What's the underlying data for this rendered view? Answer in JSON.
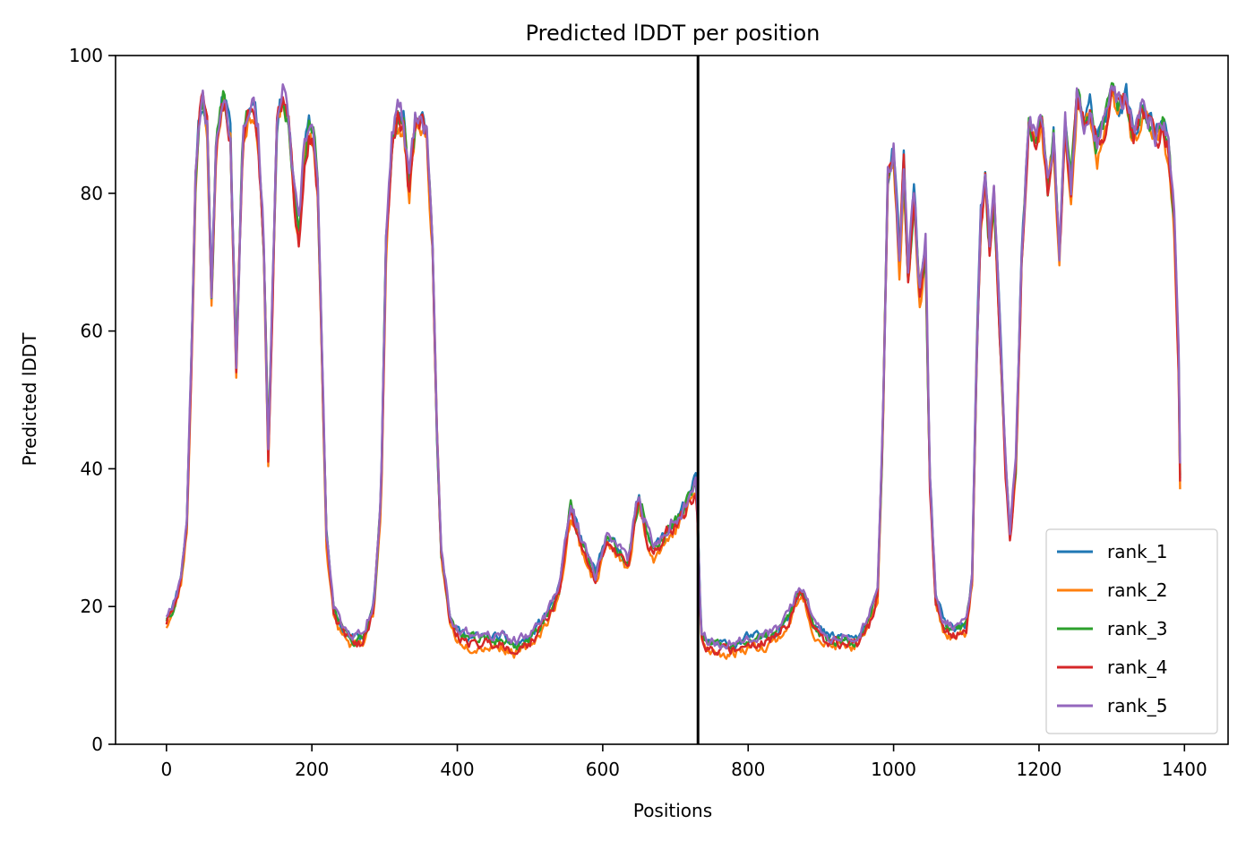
{
  "chart_data": {
    "type": "line",
    "title": "Predicted lDDT per position",
    "xlabel": "Positions",
    "ylabel": "Predicted lDDT",
    "xlim": [
      -70,
      1460
    ],
    "ylim": [
      0,
      100
    ],
    "xticks": [
      0,
      200,
      400,
      600,
      800,
      1000,
      1200,
      1400
    ],
    "yticks": [
      0,
      20,
      40,
      60,
      80,
      100
    ],
    "vline_x": 731,
    "vline_color": "#000000",
    "legend_location": "lower-right",
    "x_max": 1394,
    "profile": [
      [
        0,
        18
      ],
      [
        10,
        20
      ],
      [
        20,
        24
      ],
      [
        28,
        32
      ],
      [
        35,
        58
      ],
      [
        40,
        82
      ],
      [
        45,
        91
      ],
      [
        50,
        93
      ],
      [
        56,
        90
      ],
      [
        62,
        64
      ],
      [
        68,
        86
      ],
      [
        75,
        93
      ],
      [
        80,
        94
      ],
      [
        88,
        88
      ],
      [
        96,
        55
      ],
      [
        105,
        88
      ],
      [
        112,
        92
      ],
      [
        120,
        93
      ],
      [
        126,
        89
      ],
      [
        134,
        72
      ],
      [
        140,
        42
      ],
      [
        146,
        65
      ],
      [
        152,
        90
      ],
      [
        160,
        94
      ],
      [
        168,
        90
      ],
      [
        175,
        80
      ],
      [
        182,
        74
      ],
      [
        190,
        86
      ],
      [
        196,
        89
      ],
      [
        203,
        88
      ],
      [
        208,
        80
      ],
      [
        213,
        60
      ],
      [
        220,
        30
      ],
      [
        230,
        19
      ],
      [
        240,
        17
      ],
      [
        255,
        15
      ],
      [
        270,
        15
      ],
      [
        285,
        20
      ],
      [
        295,
        35
      ],
      [
        302,
        72
      ],
      [
        310,
        87
      ],
      [
        318,
        91
      ],
      [
        326,
        90
      ],
      [
        334,
        80
      ],
      [
        342,
        90
      ],
      [
        350,
        91
      ],
      [
        358,
        88
      ],
      [
        366,
        72
      ],
      [
        372,
        45
      ],
      [
        378,
        28
      ],
      [
        390,
        18
      ],
      [
        400,
        16
      ],
      [
        420,
        15
      ],
      [
        440,
        15
      ],
      [
        460,
        15
      ],
      [
        480,
        14
      ],
      [
        500,
        15
      ],
      [
        520,
        18
      ],
      [
        540,
        22
      ],
      [
        548,
        28
      ],
      [
        556,
        34
      ],
      [
        565,
        31
      ],
      [
        575,
        28
      ],
      [
        590,
        24
      ],
      [
        605,
        30
      ],
      [
        620,
        28
      ],
      [
        635,
        26
      ],
      [
        650,
        36
      ],
      [
        660,
        31
      ],
      [
        670,
        28
      ],
      [
        685,
        30
      ],
      [
        700,
        32
      ],
      [
        712,
        34
      ],
      [
        722,
        36
      ],
      [
        729,
        38
      ],
      [
        735,
        16
      ],
      [
        745,
        14
      ],
      [
        760,
        14
      ],
      [
        780,
        14
      ],
      [
        800,
        15
      ],
      [
        820,
        15
      ],
      [
        840,
        16
      ],
      [
        855,
        18
      ],
      [
        866,
        21
      ],
      [
        875,
        22
      ],
      [
        890,
        17
      ],
      [
        910,
        15
      ],
      [
        930,
        15
      ],
      [
        950,
        15
      ],
      [
        965,
        17
      ],
      [
        978,
        22
      ],
      [
        985,
        45
      ],
      [
        992,
        82
      ],
      [
        1000,
        86
      ],
      [
        1008,
        70
      ],
      [
        1014,
        84
      ],
      [
        1020,
        68
      ],
      [
        1028,
        80
      ],
      [
        1036,
        65
      ],
      [
        1044,
        72
      ],
      [
        1050,
        38
      ],
      [
        1058,
        21
      ],
      [
        1070,
        17
      ],
      [
        1085,
        16
      ],
      [
        1100,
        17
      ],
      [
        1108,
        24
      ],
      [
        1114,
        55
      ],
      [
        1120,
        76
      ],
      [
        1126,
        82
      ],
      [
        1132,
        72
      ],
      [
        1138,
        80
      ],
      [
        1146,
        60
      ],
      [
        1154,
        40
      ],
      [
        1160,
        30
      ],
      [
        1168,
        40
      ],
      [
        1176,
        70
      ],
      [
        1186,
        90
      ],
      [
        1194,
        88
      ],
      [
        1204,
        90
      ],
      [
        1212,
        80
      ],
      [
        1220,
        88
      ],
      [
        1228,
        70
      ],
      [
        1236,
        90
      ],
      [
        1244,
        80
      ],
      [
        1252,
        94
      ],
      [
        1262,
        90
      ],
      [
        1270,
        92
      ],
      [
        1280,
        86
      ],
      [
        1290,
        90
      ],
      [
        1300,
        94
      ],
      [
        1310,
        92
      ],
      [
        1320,
        94
      ],
      [
        1330,
        88
      ],
      [
        1340,
        92
      ],
      [
        1350,
        90
      ],
      [
        1360,
        88
      ],
      [
        1370,
        90
      ],
      [
        1378,
        86
      ],
      [
        1386,
        75
      ],
      [
        1392,
        55
      ],
      [
        1394,
        38
      ]
    ],
    "series": [
      {
        "name": "rank_1",
        "color": "#1f77b4",
        "offset": 0.5,
        "seed": 11
      },
      {
        "name": "rank_2",
        "color": "#ff7f0e",
        "offset": -0.8,
        "seed": 23
      },
      {
        "name": "rank_3",
        "color": "#2ca02c",
        "offset": 0.2,
        "seed": 37
      },
      {
        "name": "rank_4",
        "color": "#d62728",
        "offset": -0.3,
        "seed": 51
      },
      {
        "name": "rank_5",
        "color": "#9467bd",
        "offset": 0.8,
        "seed": 67
      }
    ]
  }
}
